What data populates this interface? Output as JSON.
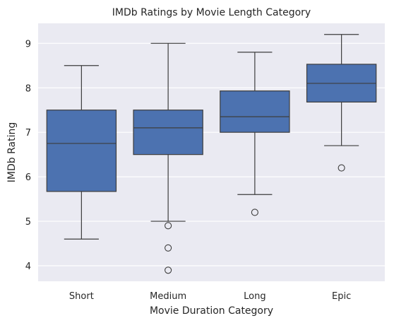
{
  "chart_data": {
    "type": "box",
    "title": "IMDb Ratings by Movie Length Category",
    "xlabel": "Movie Duration Category",
    "ylabel": "IMDb Rating",
    "ylim": [
      3.65,
      9.45
    ],
    "yticks": [
      4,
      5,
      6,
      7,
      8,
      9
    ],
    "grid": true,
    "box_color": "#4c72b0",
    "background_color": "#eaeaf2",
    "categories": [
      "Short",
      "Medium",
      "Long",
      "Epic"
    ],
    "boxes": [
      {
        "category": "Short",
        "whisker_low": 4.6,
        "q1": 5.67,
        "median": 6.75,
        "q3": 7.5,
        "whisker_high": 8.5,
        "outliers": []
      },
      {
        "category": "Medium",
        "whisker_low": 5.0,
        "q1": 6.5,
        "median": 7.1,
        "q3": 7.5,
        "whisker_high": 9.0,
        "outliers": [
          4.9,
          4.4,
          3.9
        ]
      },
      {
        "category": "Long",
        "whisker_low": 5.6,
        "q1": 7.0,
        "median": 7.35,
        "q3": 7.93,
        "whisker_high": 8.8,
        "outliers": [
          5.2
        ]
      },
      {
        "category": "Epic",
        "whisker_low": 6.7,
        "q1": 7.68,
        "median": 8.1,
        "q3": 8.53,
        "whisker_high": 9.2,
        "outliers": [
          6.2
        ]
      }
    ]
  }
}
